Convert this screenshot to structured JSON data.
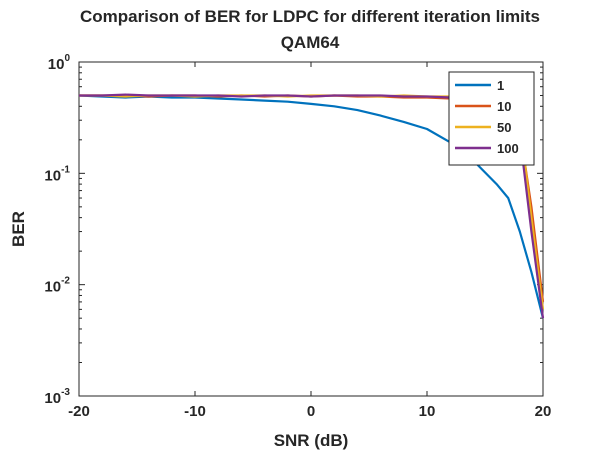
{
  "chart_data": {
    "type": "line",
    "title": "Comparison of BER for LDPC for different iteration limits",
    "subtitle": "QAM64",
    "xlabel": "SNR (dB)",
    "ylabel": "BER",
    "xlim": [
      -20,
      20
    ],
    "ylim": [
      0.001,
      1
    ],
    "yscale": "log",
    "grid": false,
    "legend_position": "top-right",
    "x_ticks": [
      "-20",
      "-10",
      "0",
      "10",
      "20"
    ],
    "y_ticks": [
      {
        "base": "10",
        "exp": "0",
        "value": 1
      },
      {
        "base": "10",
        "exp": "-1",
        "value": 0.1
      },
      {
        "base": "10",
        "exp": "-2",
        "value": 0.01
      },
      {
        "base": "10",
        "exp": "-3",
        "value": 0.001
      }
    ],
    "series": [
      {
        "name": "1",
        "color": "#0072BD",
        "x": [
          -20,
          -18,
          -16,
          -14,
          -12,
          -10,
          -8,
          -6,
          -4,
          -2,
          0,
          2,
          4,
          6,
          8,
          10,
          12,
          14,
          16,
          17,
          18,
          19,
          20
        ],
        "y": [
          0.5,
          0.49,
          0.48,
          0.49,
          0.48,
          0.48,
          0.47,
          0.46,
          0.45,
          0.44,
          0.42,
          0.4,
          0.37,
          0.33,
          0.29,
          0.25,
          0.19,
          0.13,
          0.08,
          0.06,
          0.03,
          0.013,
          0.005
        ]
      },
      {
        "name": "10",
        "color": "#D95319",
        "x": [
          -20,
          -18,
          -16,
          -14,
          -12,
          -10,
          -8,
          -6,
          -4,
          -2,
          0,
          2,
          4,
          6,
          8,
          10,
          12,
          14,
          16,
          17,
          18,
          19,
          20
        ],
        "y": [
          0.5,
          0.5,
          0.5,
          0.49,
          0.5,
          0.5,
          0.49,
          0.5,
          0.49,
          0.5,
          0.49,
          0.5,
          0.49,
          0.49,
          0.48,
          0.48,
          0.47,
          0.45,
          0.42,
          0.38,
          0.25,
          0.05,
          0.007
        ]
      },
      {
        "name": "50",
        "color": "#EDB120",
        "x": [
          -20,
          -18,
          -16,
          -14,
          -12,
          -10,
          -8,
          -6,
          -4,
          -2,
          0,
          2,
          4,
          6,
          8,
          10,
          12,
          14,
          16,
          17,
          18,
          19,
          20
        ],
        "y": [
          0.5,
          0.5,
          0.49,
          0.5,
          0.5,
          0.49,
          0.5,
          0.5,
          0.5,
          0.49,
          0.5,
          0.5,
          0.5,
          0.49,
          0.5,
          0.49,
          0.49,
          0.48,
          0.47,
          0.45,
          0.3,
          0.04,
          0.006
        ]
      },
      {
        "name": "100",
        "color": "#7E2F8E",
        "x": [
          -20,
          -18,
          -16,
          -14,
          -12,
          -10,
          -8,
          -6,
          -4,
          -2,
          0,
          2,
          4,
          6,
          8,
          10,
          12,
          14,
          16,
          17,
          18,
          19,
          20
        ],
        "y": [
          0.5,
          0.5,
          0.51,
          0.5,
          0.5,
          0.5,
          0.5,
          0.49,
          0.5,
          0.5,
          0.49,
          0.5,
          0.5,
          0.5,
          0.49,
          0.49,
          0.48,
          0.48,
          0.47,
          0.44,
          0.22,
          0.03,
          0.005
        ]
      }
    ]
  }
}
